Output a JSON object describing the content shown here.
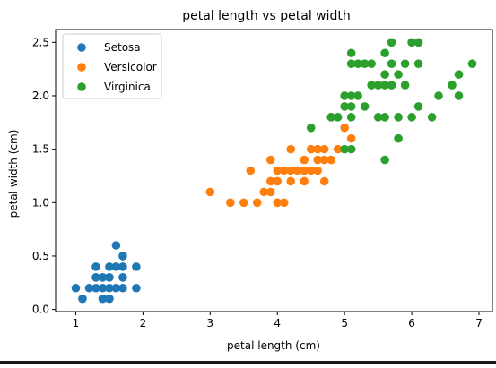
{
  "colors": {
    "setosa": "#1f77b4",
    "versicolor": "#ff7f0e",
    "virginica": "#2ca02c",
    "legend_border": "#cccccc"
  },
  "chart_data": {
    "type": "scatter",
    "title": "petal length vs petal width",
    "xlabel": "petal length (cm)",
    "ylabel": "petal width (cm)",
    "xlim": [
      0.7,
      7.2
    ],
    "ylim": [
      -0.02,
      2.62
    ],
    "xticks": [
      1,
      2,
      3,
      4,
      5,
      6,
      7
    ],
    "yticks": [
      0.0,
      0.5,
      1.0,
      1.5,
      2.0,
      2.5
    ],
    "xtick_labels": [
      "1",
      "2",
      "3",
      "4",
      "5",
      "6",
      "7"
    ],
    "ytick_labels": [
      "0.0",
      "0.5",
      "1.0",
      "1.5",
      "2.0",
      "2.5"
    ],
    "grid": false,
    "legend_position": "top-left",
    "series": [
      {
        "name": "Setosa",
        "color_key": "setosa",
        "points": [
          [
            1.0,
            0.2
          ],
          [
            1.1,
            0.1
          ],
          [
            1.2,
            0.2
          ],
          [
            1.3,
            0.2
          ],
          [
            1.3,
            0.3
          ],
          [
            1.3,
            0.4
          ],
          [
            1.4,
            0.1
          ],
          [
            1.4,
            0.2
          ],
          [
            1.4,
            0.3
          ],
          [
            1.5,
            0.1
          ],
          [
            1.5,
            0.2
          ],
          [
            1.5,
            0.3
          ],
          [
            1.5,
            0.4
          ],
          [
            1.6,
            0.2
          ],
          [
            1.6,
            0.4
          ],
          [
            1.6,
            0.6
          ],
          [
            1.7,
            0.2
          ],
          [
            1.7,
            0.3
          ],
          [
            1.7,
            0.4
          ],
          [
            1.7,
            0.5
          ],
          [
            1.9,
            0.2
          ],
          [
            1.9,
            0.4
          ]
        ]
      },
      {
        "name": "Versicolor",
        "color_key": "versicolor",
        "points": [
          [
            3.0,
            1.1
          ],
          [
            3.3,
            1.0
          ],
          [
            3.5,
            1.0
          ],
          [
            3.6,
            1.3
          ],
          [
            3.7,
            1.0
          ],
          [
            3.8,
            1.1
          ],
          [
            3.9,
            1.1
          ],
          [
            3.9,
            1.2
          ],
          [
            3.9,
            1.4
          ],
          [
            4.0,
            1.0
          ],
          [
            4.0,
            1.2
          ],
          [
            4.0,
            1.3
          ],
          [
            4.1,
            1.0
          ],
          [
            4.1,
            1.3
          ],
          [
            4.2,
            1.2
          ],
          [
            4.2,
            1.3
          ],
          [
            4.2,
            1.5
          ],
          [
            4.3,
            1.3
          ],
          [
            4.4,
            1.2
          ],
          [
            4.4,
            1.3
          ],
          [
            4.4,
            1.4
          ],
          [
            4.5,
            1.3
          ],
          [
            4.5,
            1.5
          ],
          [
            4.6,
            1.3
          ],
          [
            4.6,
            1.4
          ],
          [
            4.6,
            1.5
          ],
          [
            4.7,
            1.2
          ],
          [
            4.7,
            1.4
          ],
          [
            4.7,
            1.5
          ],
          [
            4.8,
            1.4
          ],
          [
            4.8,
            1.8
          ],
          [
            4.9,
            1.5
          ],
          [
            5.0,
            1.7
          ],
          [
            5.1,
            1.6
          ]
        ]
      },
      {
        "name": "Virginica",
        "color_key": "virginica",
        "points": [
          [
            4.5,
            1.7
          ],
          [
            4.8,
            1.8
          ],
          [
            4.9,
            1.8
          ],
          [
            5.0,
            1.5
          ],
          [
            5.0,
            1.9
          ],
          [
            5.0,
            2.0
          ],
          [
            5.1,
            1.5
          ],
          [
            5.1,
            1.8
          ],
          [
            5.1,
            1.9
          ],
          [
            5.1,
            2.0
          ],
          [
            5.1,
            2.3
          ],
          [
            5.1,
            2.4
          ],
          [
            5.2,
            2.0
          ],
          [
            5.2,
            2.3
          ],
          [
            5.3,
            1.9
          ],
          [
            5.3,
            2.3
          ],
          [
            5.4,
            2.1
          ],
          [
            5.4,
            2.3
          ],
          [
            5.5,
            1.8
          ],
          [
            5.5,
            2.1
          ],
          [
            5.6,
            1.4
          ],
          [
            5.6,
            1.8
          ],
          [
            5.6,
            2.1
          ],
          [
            5.6,
            2.2
          ],
          [
            5.6,
            2.4
          ],
          [
            5.7,
            2.1
          ],
          [
            5.7,
            2.3
          ],
          [
            5.7,
            2.5
          ],
          [
            5.8,
            1.6
          ],
          [
            5.8,
            1.8
          ],
          [
            5.8,
            2.2
          ],
          [
            5.9,
            2.1
          ],
          [
            5.9,
            2.3
          ],
          [
            6.0,
            1.8
          ],
          [
            6.0,
            2.5
          ],
          [
            6.1,
            1.9
          ],
          [
            6.1,
            2.3
          ],
          [
            6.1,
            2.5
          ],
          [
            6.3,
            1.8
          ],
          [
            6.4,
            2.0
          ],
          [
            6.6,
            2.1
          ],
          [
            6.7,
            2.0
          ],
          [
            6.7,
            2.2
          ],
          [
            6.9,
            2.3
          ]
        ]
      }
    ]
  }
}
